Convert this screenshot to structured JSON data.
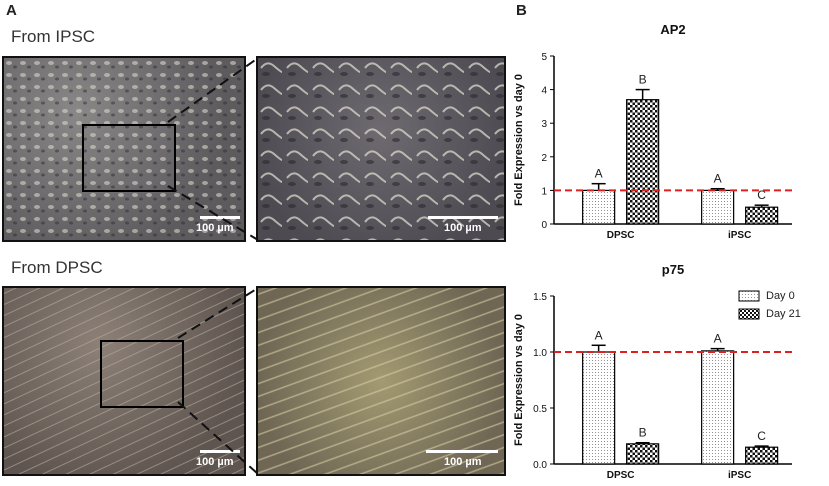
{
  "panels": {
    "a_label": "A",
    "b_label": "B"
  },
  "images": {
    "row1_title": "From IPSC",
    "row2_title": "From DPSC",
    "scale_labels": [
      "100 µm",
      "100 µm",
      "100 µm",
      "100 µm"
    ]
  },
  "colors": {
    "ipsc_bg": "#6b6a6c",
    "dpsc_bg": "#7a6d64",
    "dashed_line": "#e02020"
  },
  "legend": {
    "items": [
      "Day 0",
      "Day 21"
    ]
  },
  "chart_data": [
    {
      "type": "bar",
      "title": "AP2",
      "ylabel": "Fold Expression vs day 0",
      "categories": [
        "DPSC",
        "iPSC"
      ],
      "ylim": [
        0,
        5
      ],
      "yticks": [
        0,
        1,
        2,
        3,
        4,
        5
      ],
      "ytick_labels": [
        "0",
        "1",
        "2",
        "3",
        "4",
        "5"
      ],
      "reference_line": 1.0,
      "series": [
        {
          "name": "Day 0",
          "values": [
            1.0,
            1.0
          ],
          "errors": [
            0.2,
            0.05
          ],
          "letters": [
            "A",
            "A"
          ]
        },
        {
          "name": "Day 21",
          "values": [
            3.7,
            0.5
          ],
          "errors": [
            0.3,
            0.06
          ],
          "letters": [
            "B",
            "C"
          ]
        }
      ]
    },
    {
      "type": "bar",
      "title": "p75",
      "ylabel": "Fold Expression vs day 0",
      "categories": [
        "DPSC",
        "iPSC"
      ],
      "ylim": [
        0,
        1.5
      ],
      "yticks": [
        0,
        0.5,
        1.0,
        1.5
      ],
      "ytick_labels": [
        "0.0",
        "0.5",
        "1.0",
        "1.5"
      ],
      "reference_line": 1.0,
      "series": [
        {
          "name": "Day 0",
          "values": [
            1.0,
            1.01
          ],
          "errors": [
            0.06,
            0.02
          ],
          "letters": [
            "A",
            "A"
          ]
        },
        {
          "name": "Day 21",
          "values": [
            0.18,
            0.15
          ],
          "errors": [
            0.01,
            0.01
          ],
          "letters": [
            "B",
            "C"
          ]
        }
      ]
    }
  ]
}
